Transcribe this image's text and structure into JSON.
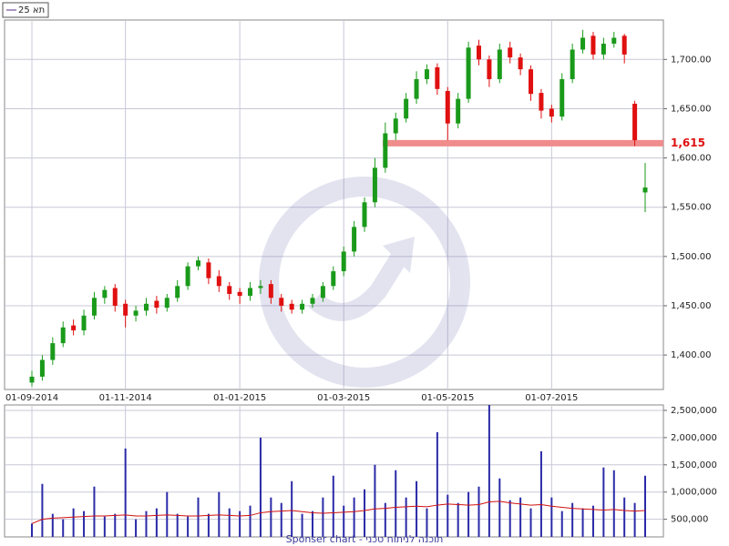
{
  "chart_data": [
    {
      "type": "candlestick",
      "title": "תא 25",
      "categories": [
        "01-09-2014",
        null,
        null,
        null,
        null,
        null,
        null,
        null,
        null,
        "01-11-2014",
        null,
        null,
        null,
        null,
        null,
        null,
        null,
        null,
        null,
        null,
        "01-01-2015",
        null,
        null,
        null,
        null,
        null,
        null,
        null,
        null,
        null,
        "01-03-2015",
        null,
        null,
        null,
        null,
        null,
        null,
        null,
        null,
        null,
        "01-05-2015",
        null,
        null,
        null,
        null,
        null,
        null,
        null,
        null,
        null,
        "01-07-2015",
        null,
        null,
        null,
        null,
        null,
        null,
        null,
        null,
        null
      ],
      "open": [
        1372,
        1378,
        1395,
        1412,
        1430,
        1425,
        1440,
        1458,
        1468,
        1452,
        1440,
        1445,
        1455,
        1448,
        1458,
        1470,
        1490,
        1494,
        1480,
        1470,
        1464,
        1460,
        1468,
        1472,
        1458,
        1452,
        1446,
        1452,
        1458,
        1470,
        1485,
        1505,
        1530,
        1555,
        1590,
        1625,
        1640,
        1660,
        1680,
        1692,
        1668,
        1635,
        1660,
        1714,
        1700,
        1680,
        1712,
        1702,
        1690,
        1666,
        1650,
        1642,
        1680,
        1710,
        1724,
        1705,
        1716,
        1724,
        1655,
        1565
      ],
      "high": [
        1384,
        1400,
        1418,
        1434,
        1436,
        1446,
        1464,
        1470,
        1472,
        1456,
        1450,
        1458,
        1460,
        1462,
        1476,
        1494,
        1500,
        1498,
        1486,
        1474,
        1468,
        1474,
        1476,
        1476,
        1462,
        1456,
        1456,
        1462,
        1474,
        1490,
        1510,
        1536,
        1560,
        1600,
        1636,
        1646,
        1666,
        1688,
        1695,
        1696,
        1672,
        1666,
        1718,
        1720,
        1704,
        1716,
        1718,
        1706,
        1694,
        1670,
        1654,
        1686,
        1716,
        1730,
        1728,
        1722,
        1728,
        1726,
        1658,
        1595
      ],
      "low": [
        1368,
        1374,
        1390,
        1408,
        1420,
        1420,
        1436,
        1452,
        1444,
        1428,
        1434,
        1440,
        1442,
        1444,
        1454,
        1466,
        1486,
        1472,
        1464,
        1456,
        1452,
        1455,
        1462,
        1452,
        1444,
        1442,
        1442,
        1448,
        1454,
        1466,
        1480,
        1500,
        1525,
        1550,
        1585,
        1618,
        1636,
        1655,
        1675,
        1664,
        1618,
        1630,
        1656,
        1694,
        1672,
        1676,
        1696,
        1684,
        1658,
        1640,
        1636,
        1638,
        1676,
        1706,
        1700,
        1700,
        1712,
        1696,
        1612,
        1545
      ],
      "close": [
        1378,
        1395,
        1412,
        1428,
        1425,
        1440,
        1458,
        1466,
        1450,
        1440,
        1445,
        1452,
        1448,
        1458,
        1470,
        1490,
        1496,
        1478,
        1470,
        1462,
        1460,
        1468,
        1470,
        1458,
        1450,
        1446,
        1452,
        1458,
        1470,
        1485,
        1505,
        1530,
        1555,
        1590,
        1625,
        1640,
        1660,
        1680,
        1690,
        1670,
        1635,
        1660,
        1712,
        1700,
        1680,
        1710,
        1702,
        1690,
        1665,
        1648,
        1642,
        1680,
        1710,
        1722,
        1705,
        1716,
        1722,
        1705,
        1618,
        1570
      ],
      "up_color": "#1a9a1a",
      "down_color": "#e01010",
      "ylim": [
        1365,
        1740
      ],
      "yticks": [
        {
          "value": 1400,
          "label": "1,400.00"
        },
        {
          "value": 1450,
          "label": "1,450.00"
        },
        {
          "value": 1500,
          "label": "1,500.00"
        },
        {
          "value": 1550,
          "label": "1,550.00"
        },
        {
          "value": 1600,
          "label": "1,600.00"
        },
        {
          "value": 1650,
          "label": "1,650.00"
        },
        {
          "value": 1700,
          "label": "1,700.00"
        }
      ],
      "level": {
        "value": 1615,
        "label": "1,615",
        "color": "#f08c8c"
      },
      "grid": true
    },
    {
      "type": "bar",
      "values": [
        420000,
        1150000,
        600000,
        500000,
        700000,
        650000,
        1100000,
        550000,
        600000,
        1800000,
        500000,
        650000,
        700000,
        1000000,
        600000,
        550000,
        900000,
        600000,
        1000000,
        700000,
        650000,
        750000,
        2000000,
        900000,
        800000,
        1200000,
        600000,
        650000,
        900000,
        1300000,
        750000,
        900000,
        1050000,
        1500000,
        800000,
        1400000,
        900000,
        1200000,
        700000,
        2100000,
        950000,
        800000,
        1000000,
        1100000,
        2600000,
        1250000,
        850000,
        900000,
        700000,
        1750000,
        900000,
        650000,
        800000,
        700000,
        750000,
        1450000,
        1400000,
        900000,
        800000,
        1300000
      ],
      "average": [
        420000,
        500000,
        520000,
        530000,
        540000,
        550000,
        560000,
        560000,
        570000,
        580000,
        560000,
        560000,
        570000,
        580000,
        570000,
        560000,
        560000,
        570000,
        580000,
        570000,
        560000,
        570000,
        620000,
        640000,
        650000,
        660000,
        640000,
        620000,
        610000,
        620000,
        630000,
        640000,
        660000,
        690000,
        700000,
        720000,
        730000,
        740000,
        730000,
        760000,
        780000,
        770000,
        760000,
        770000,
        820000,
        830000,
        800000,
        780000,
        760000,
        770000,
        740000,
        720000,
        700000,
        690000,
        680000,
        670000,
        680000,
        660000,
        650000,
        660000
      ],
      "color": "#2a2aa8",
      "average_color": "#d01010",
      "ylim": [
        176000,
        2600000
      ],
      "yticks": [
        {
          "value": 500000,
          "label": "500,000"
        },
        {
          "value": 1000000,
          "label": "1,000,000"
        },
        {
          "value": 1500000,
          "label": "1,500,000"
        },
        {
          "value": 2000000,
          "label": "2,000,000"
        },
        {
          "value": 2500000,
          "label": "2,500,000"
        }
      ],
      "grid": true
    }
  ],
  "footer": "Sponser chart - תוכנה לניתוח טכני"
}
